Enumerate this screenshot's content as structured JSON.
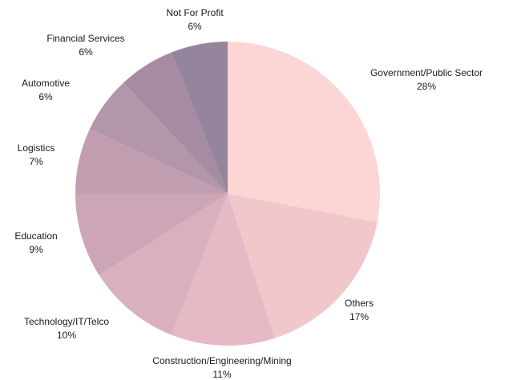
{
  "chart_data": {
    "type": "pie",
    "slices": [
      {
        "label": "Government/Public Sector",
        "value": 28,
        "value_label": "28%",
        "color": "#fbd6d4"
      },
      {
        "label": "Others",
        "value": 17,
        "value_label": "17%",
        "color": "#f2c7cc"
      },
      {
        "label": "Construction/Engineering/Mining",
        "value": 11,
        "value_label": "11%",
        "color": "#e6bac4"
      },
      {
        "label": "Technology/IT/Telco",
        "value": 10,
        "value_label": "10%",
        "color": "#d9b0bd"
      },
      {
        "label": "Education",
        "value": 9,
        "value_label": "9%",
        "color": "#cca6b6"
      },
      {
        "label": "Logistics",
        "value": 7,
        "value_label": "7%",
        "color": "#c09eb0"
      },
      {
        "label": "Automotive",
        "value": 6,
        "value_label": "6%",
        "color": "#b396aa"
      },
      {
        "label": "Financial Services",
        "value": 6,
        "value_label": "6%",
        "color": "#a68ca3"
      },
      {
        "label": "Not For Profit",
        "value": 6,
        "value_label": "6%",
        "color": "#94849c"
      }
    ]
  }
}
